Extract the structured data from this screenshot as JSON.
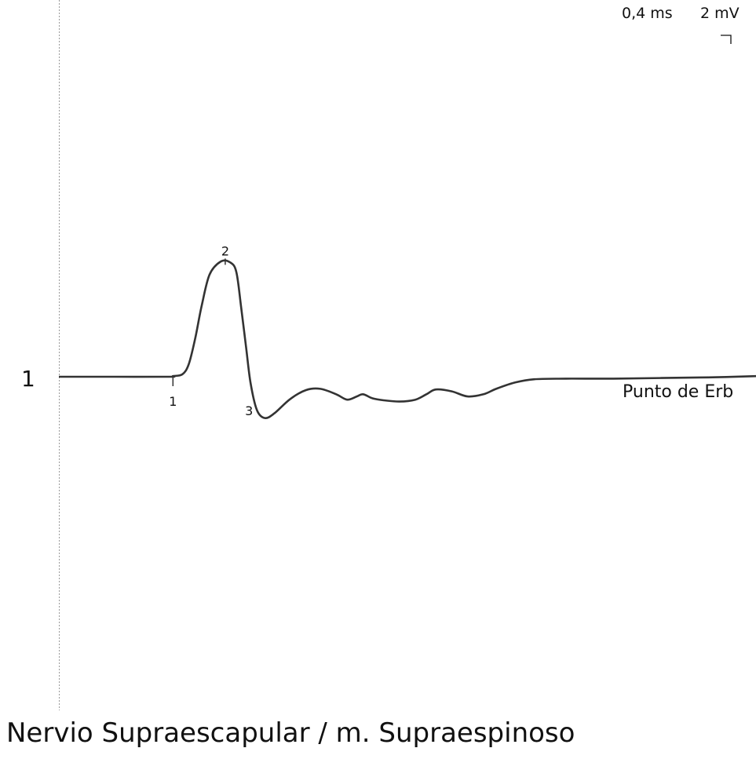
{
  "scale": {
    "time": "0,4 ms",
    "amplitude": "2 mV"
  },
  "caption": "Nervio Supraescapular / m. Supraespinoso",
  "chart_data": {
    "type": "line",
    "title": "",
    "xlabel": "",
    "ylabel": "",
    "grid": false,
    "trace": {
      "number": "1",
      "label": "Punto de Erb",
      "sweep_ms": 4.4,
      "time_per_div_ms": 0.4,
      "amplitude_per_div_mV": 2,
      "points": [
        [
          0.0,
          0.0
        ],
        [
          0.35,
          0.0
        ],
        [
          0.7,
          0.0
        ],
        [
          0.72,
          -0.02
        ],
        [
          0.78,
          -0.08
        ],
        [
          0.82,
          -0.4
        ],
        [
          0.86,
          -1.2
        ],
        [
          0.9,
          -2.2
        ],
        [
          0.95,
          -3.2
        ],
        [
          1.02,
          -3.62
        ],
        [
          1.08,
          -3.6
        ],
        [
          1.12,
          -3.3
        ],
        [
          1.15,
          -2.2
        ],
        [
          1.18,
          -1.0
        ],
        [
          1.21,
          0.2
        ],
        [
          1.25,
          1.05
        ],
        [
          1.3,
          1.3
        ],
        [
          1.36,
          1.15
        ],
        [
          1.46,
          0.7
        ],
        [
          1.56,
          0.42
        ],
        [
          1.65,
          0.38
        ],
        [
          1.75,
          0.55
        ],
        [
          1.82,
          0.72
        ],
        [
          1.88,
          0.62
        ],
        [
          1.92,
          0.55
        ],
        [
          1.98,
          0.68
        ],
        [
          2.05,
          0.74
        ],
        [
          2.15,
          0.78
        ],
        [
          2.25,
          0.72
        ],
        [
          2.32,
          0.55
        ],
        [
          2.38,
          0.4
        ],
        [
          2.48,
          0.46
        ],
        [
          2.58,
          0.62
        ],
        [
          2.68,
          0.55
        ],
        [
          2.76,
          0.38
        ],
        [
          2.88,
          0.18
        ],
        [
          3.0,
          0.08
        ],
        [
          3.2,
          0.06
        ],
        [
          3.5,
          0.06
        ],
        [
          3.8,
          0.04
        ],
        [
          4.1,
          0.02
        ],
        [
          4.4,
          -0.02
        ]
      ],
      "markers": [
        {
          "label": "1",
          "t": 0.72,
          "v": 0.0,
          "pos": "below",
          "tick": true
        },
        {
          "label": "2",
          "t": 1.05,
          "v": -3.62,
          "pos": "above",
          "tick": true
        },
        {
          "label": "3",
          "t": 1.2,
          "v": 0.3,
          "pos": "below",
          "tick": false
        }
      ]
    },
    "colors": {
      "trace": "#333333",
      "cursor": "#9a9a9a"
    }
  }
}
